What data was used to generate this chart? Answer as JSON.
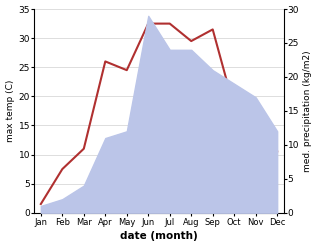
{
  "months": [
    "Jan",
    "Feb",
    "Mar",
    "Apr",
    "May",
    "Jun",
    "Jul",
    "Aug",
    "Sep",
    "Oct",
    "Nov",
    "Dec"
  ],
  "temp": [
    1.5,
    7.5,
    11.0,
    26.0,
    24.5,
    32.5,
    32.5,
    29.5,
    31.5,
    18.0,
    11.0,
    10.5
  ],
  "precip": [
    1.0,
    2.0,
    4.0,
    11.0,
    12.0,
    29.0,
    24.0,
    24.0,
    21.0,
    19.0,
    17.0,
    12.0
  ],
  "temp_color": "#b03030",
  "precip_fill_color": "#bbc5e8",
  "temp_ylim": [
    0,
    35
  ],
  "precip_ylim": [
    0,
    30
  ],
  "temp_yticks": [
    0,
    5,
    10,
    15,
    20,
    25,
    30,
    35
  ],
  "precip_yticks": [
    0,
    5,
    10,
    15,
    20,
    25,
    30
  ],
  "xlabel": "date (month)",
  "ylabel_left": "max temp (C)",
  "ylabel_right": "med. precipitation (kg/m2)",
  "background_color": "#ffffff",
  "grid_color": "#d0d0d0"
}
